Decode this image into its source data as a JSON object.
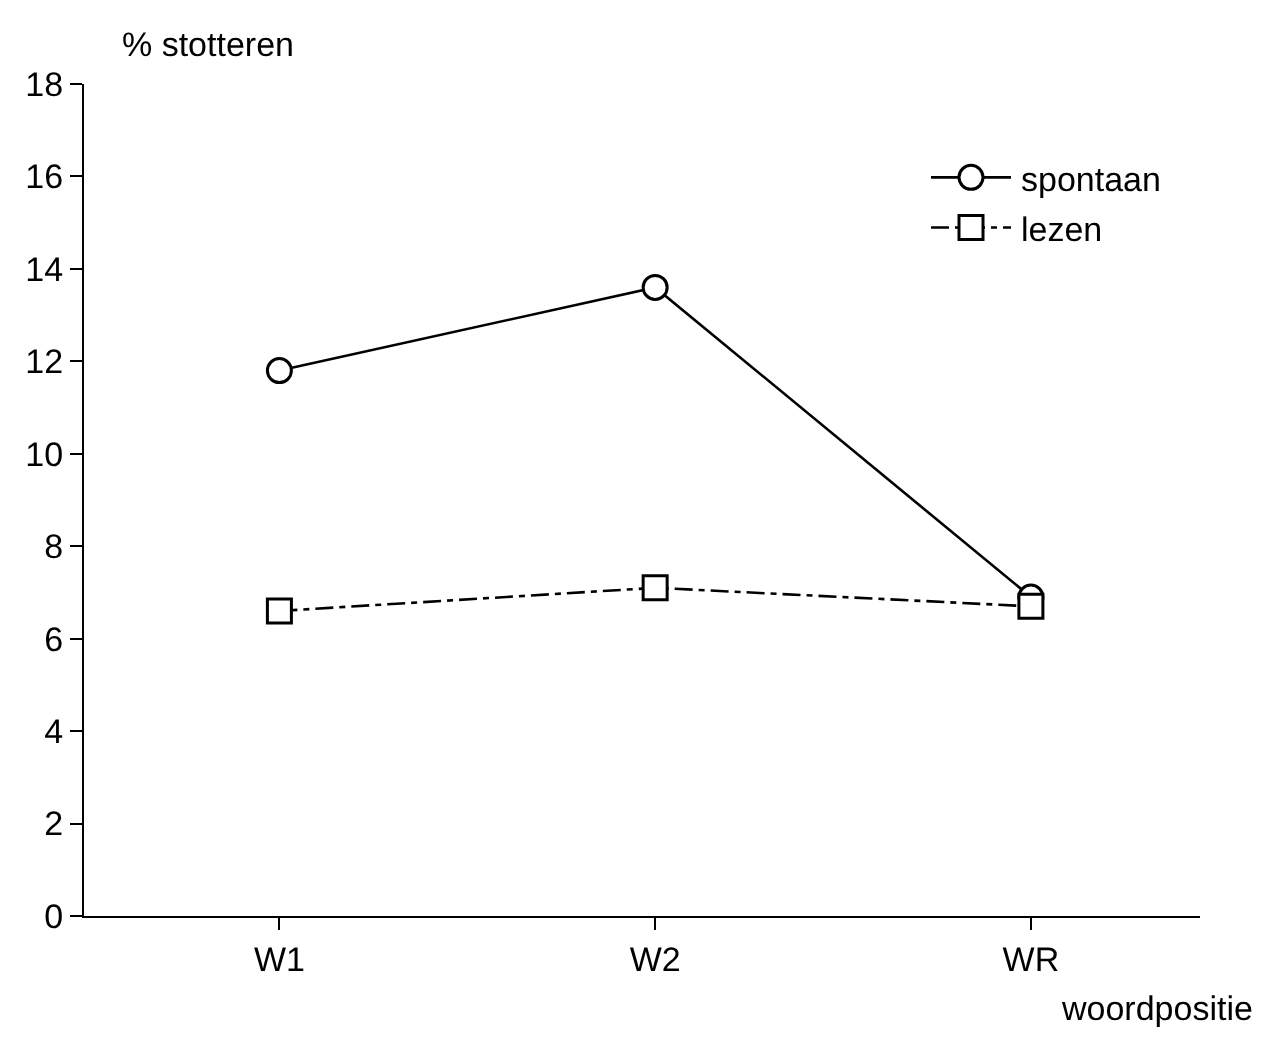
{
  "chart_data": {
    "type": "line",
    "xlabel": "woordpositie",
    "ylabel": "% stotteren",
    "categories": [
      "W1",
      "W2",
      "WR"
    ],
    "series": [
      {
        "name": "spontaan",
        "color": "#000000",
        "marker": "circle",
        "line_style": "solid",
        "values": [
          11.8,
          13.6,
          6.9
        ]
      },
      {
        "name": "lezen",
        "color": "#000000",
        "marker": "square",
        "line_style": "dashed",
        "values": [
          6.6,
          7.1,
          6.7
        ]
      }
    ],
    "ylim": [
      0,
      18
    ],
    "yticks": [
      0,
      2,
      4,
      6,
      8,
      10,
      12,
      14,
      16,
      18
    ],
    "grid": false,
    "legend": "top right"
  }
}
